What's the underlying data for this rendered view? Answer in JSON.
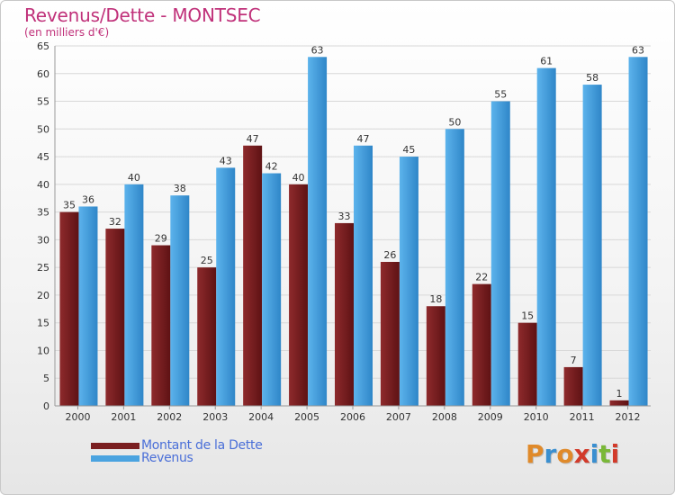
{
  "chart_data": {
    "type": "bar",
    "title": "Revenus/Dette - MONTSEC",
    "subtitle": "(en milliers d'€)",
    "categories": [
      "2000",
      "2001",
      "2002",
      "2003",
      "2004",
      "2005",
      "2006",
      "2007",
      "2008",
      "2009",
      "2010",
      "2011",
      "2012"
    ],
    "series": [
      {
        "name": "Montant de la Dette",
        "color": "#7a1e20",
        "values": [
          35,
          32,
          29,
          25,
          47,
          40,
          33,
          26,
          18,
          22,
          15,
          7,
          1
        ]
      },
      {
        "name": "Revenus",
        "color": "#4aa3e0",
        "values": [
          36,
          40,
          38,
          43,
          42,
          63,
          47,
          45,
          50,
          55,
          61,
          58,
          63
        ]
      }
    ],
    "ylim": [
      0,
      65
    ],
    "yticks": [
      0,
      5,
      10,
      15,
      20,
      25,
      30,
      35,
      40,
      45,
      50,
      55,
      60,
      65
    ],
    "grid": true,
    "legend_position": "bottom-left"
  },
  "logo": {
    "letters": [
      "P",
      "r",
      "o",
      "x",
      "i",
      "t",
      "i"
    ],
    "colors": [
      "#e08a2a",
      "#3a8fd0",
      "#e08a2a",
      "#d23a2a",
      "#3a8fd0",
      "#7ab838",
      "#d23a2a"
    ]
  }
}
